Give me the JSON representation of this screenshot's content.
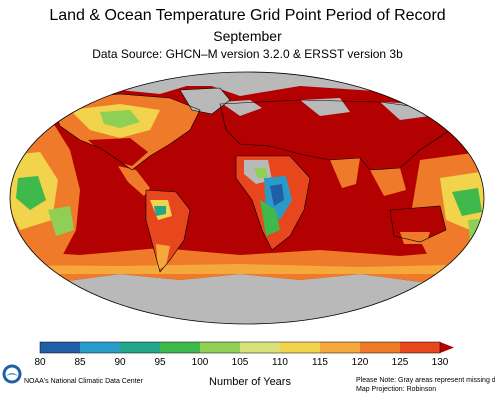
{
  "header": {
    "title": "Land & Ocean Temperature Grid Point Period of Record",
    "subtitle": "September",
    "source": "Data Source: GHCN–M version 3.2.0 & ERSST version 3b"
  },
  "legend": {
    "ticks": [
      "80",
      "85",
      "90",
      "95",
      "100",
      "105",
      "110",
      "115",
      "120",
      "125",
      "130"
    ],
    "colors": [
      "#1f5fa8",
      "#2a9bc9",
      "#21a68a",
      "#3fb84c",
      "#8fcf55",
      "#d9e27a",
      "#f2d44c",
      "#f5a83c",
      "#ef7b2a",
      "#e8461d",
      "#b30000"
    ],
    "units": "Number of Years"
  },
  "footer": {
    "credit": "NOAA's National Climatic Data Center",
    "note_line1": "Please Note: Gray areas represent missing data",
    "note_line2": "Map Projection: Robinson"
  },
  "map_colors": {
    "missing": "#b9b9b9",
    "max": "#b30000",
    "outline": "#000000"
  }
}
